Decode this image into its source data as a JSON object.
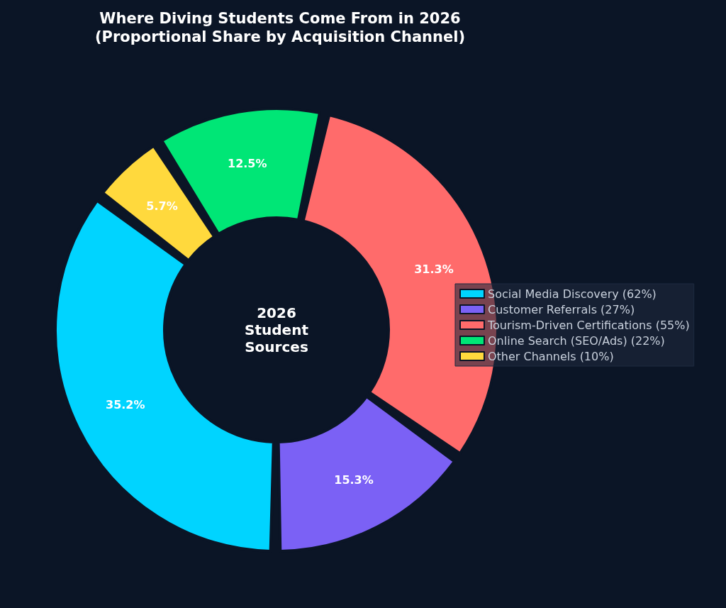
{
  "chart_data": {
    "type": "donut",
    "title": "Where Diving Students Come From in 2026\n(Proportional Share by Acquisition Channel)",
    "categories": [
      "Social Media Discovery (62%)",
      "Customer Referrals (27%)",
      "Tourism-Driven Certifications (55%)",
      "Online Search (SEO/Ads) (22%)",
      "Other Channels (10%)"
    ],
    "values": [
      35.2,
      15.3,
      31.3,
      12.5,
      5.7
    ],
    "colors": [
      "#00d4ff",
      "#7b61f5",
      "#ff6b6b",
      "#00e676",
      "#ffd93d"
    ],
    "value_labels": [
      "35.2%",
      "15.3%",
      "31.3%",
      "12.5%",
      "5.7%"
    ],
    "legend": "right",
    "annotations": [
      "2026\nStudent\nSources"
    ]
  }
}
